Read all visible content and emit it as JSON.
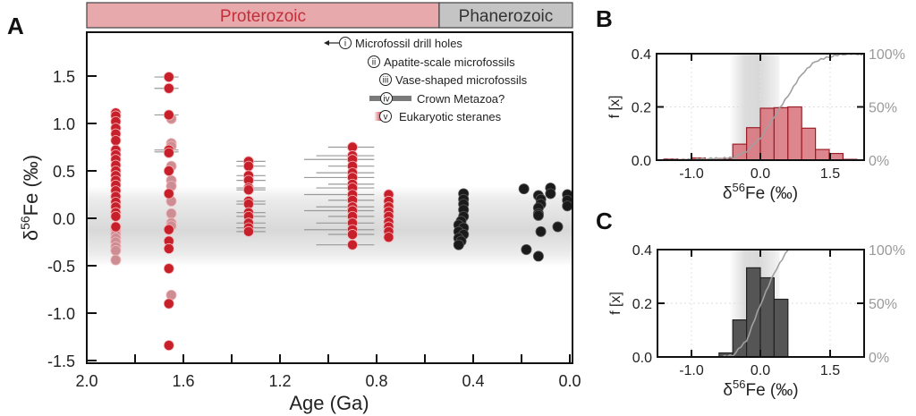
{
  "colors": {
    "proterozoic_fill": "#e8a9ad",
    "proterozoic_text": "#c0303a",
    "phanerozoic_fill": "#c4c4c4",
    "red_point": "#c8202a",
    "faded_point": "#cc8e93",
    "black_point": "#1b1b1b",
    "hist_red": "#d8717a",
    "hist_red_edge": "#9b1f28",
    "hist_dark": "#555555",
    "cdf_line": "#a0a0a0",
    "band": "#d9d9d9"
  },
  "chart_data": [
    {
      "panel": "A",
      "type": "scatter",
      "title": "",
      "xlabel": "Age (Ga)",
      "ylabel": "δ56Fe (‰)",
      "ylabel_main": "δ",
      "ylabel_sup": "56",
      "ylabel_rest": "Fe (‰)",
      "xlim": [
        2.0,
        0.0
      ],
      "ylim": [
        -1.5,
        1.9
      ],
      "x_ticks": [
        2.0,
        1.8,
        1.6,
        1.4,
        1.2,
        1.0,
        0.8,
        0.6,
        0.4,
        0.2,
        0.0
      ],
      "x_tick_labels": [
        "2.0",
        "",
        "1.6",
        "",
        "1.2",
        "",
        "0.8",
        "",
        "0.4",
        "",
        "0.0"
      ],
      "y_ticks": [
        -1.5,
        -1.0,
        -0.5,
        0.0,
        0.5,
        1.0,
        1.5
      ],
      "y_tick_labels": [
        "-1.5",
        "-1.0",
        "-0.5",
        "0.0",
        "0.5",
        "1.0",
        "1.5"
      ],
      "band": [
        -0.45,
        0.28
      ],
      "eras": [
        {
          "name": "Proterozoic",
          "from": 2.0,
          "to": 0.541
        },
        {
          "name": "Phanerozoic",
          "from": 0.541,
          "to": 0.0
        }
      ],
      "legend": [
        {
          "numeral": "i",
          "label": "Microfossil drill holes",
          "marker": "arrow"
        },
        {
          "numeral": "ii",
          "label": "Apatite-scale microfossils",
          "marker": "circle"
        },
        {
          "numeral": "iii",
          "label": "Vase-shaped microfossils",
          "marker": "circle"
        },
        {
          "numeral": "iv",
          "label": "Crown Metazoa?",
          "marker": "bar"
        },
        {
          "numeral": "v",
          "label": "Eukaryotic steranes",
          "marker": "gradient"
        }
      ],
      "series": [
        {
          "name": "Proterozoic red",
          "color": "red",
          "points": [
            [
              1.88,
              1.11
            ],
            [
              1.88,
              1.08
            ],
            [
              1.88,
              1.02
            ],
            [
              1.88,
              0.95
            ],
            [
              1.88,
              0.89
            ],
            [
              1.88,
              0.82
            ],
            [
              1.88,
              0.72
            ],
            [
              1.88,
              0.67
            ],
            [
              1.88,
              0.62
            ],
            [
              1.88,
              0.56
            ],
            [
              1.88,
              0.5
            ],
            [
              1.88,
              0.45
            ],
            [
              1.88,
              0.4
            ],
            [
              1.88,
              0.35
            ],
            [
              1.88,
              0.29
            ],
            [
              1.88,
              0.23
            ],
            [
              1.88,
              0.17
            ],
            [
              1.88,
              0.12
            ],
            [
              1.88,
              0.06
            ],
            [
              1.88,
              0.02
            ],
            [
              1.88,
              -0.09
            ],
            [
              1.66,
              1.49
            ],
            [
              1.66,
              1.37
            ],
            [
              1.66,
              1.09
            ],
            [
              1.66,
              0.72
            ],
            [
              1.66,
              0.69
            ],
            [
              1.66,
              0.5
            ],
            [
              1.66,
              0.26
            ],
            [
              1.66,
              -0.12
            ],
            [
              1.66,
              -0.24
            ],
            [
              1.66,
              -0.32
            ],
            [
              1.66,
              -0.53
            ],
            [
              1.66,
              -0.9
            ],
            [
              1.66,
              -1.34
            ],
            [
              1.33,
              0.6
            ],
            [
              1.33,
              0.55
            ],
            [
              1.33,
              0.45
            ],
            [
              1.33,
              0.4
            ],
            [
              1.33,
              0.32
            ],
            [
              1.33,
              0.3
            ],
            [
              1.33,
              0.18
            ],
            [
              1.33,
              0.15
            ],
            [
              1.33,
              0.06
            ],
            [
              1.33,
              0.02
            ],
            [
              1.33,
              -0.05
            ],
            [
              1.33,
              -0.1
            ],
            [
              1.33,
              -0.14
            ],
            [
              0.9,
              0.75
            ],
            [
              0.9,
              0.66
            ],
            [
              0.9,
              0.62
            ],
            [
              0.9,
              0.55
            ],
            [
              0.9,
              0.48
            ],
            [
              0.9,
              0.43
            ],
            [
              0.9,
              0.36
            ],
            [
              0.9,
              0.32
            ],
            [
              0.9,
              0.25
            ],
            [
              0.9,
              0.19
            ],
            [
              0.9,
              0.12
            ],
            [
              0.9,
              0.08
            ],
            [
              0.9,
              0.02
            ],
            [
              0.9,
              -0.05
            ],
            [
              0.9,
              -0.12
            ],
            [
              0.9,
              -0.17
            ],
            [
              0.9,
              -0.28
            ],
            [
              0.75,
              0.25
            ],
            [
              0.75,
              0.18
            ],
            [
              0.75,
              0.12
            ],
            [
              0.75,
              0.07
            ],
            [
              0.75,
              0.02
            ],
            [
              0.75,
              -0.04
            ],
            [
              0.75,
              -0.09
            ],
            [
              0.75,
              -0.14
            ],
            [
              0.75,
              -0.2
            ]
          ]
        },
        {
          "name": "Proterozoic faded",
          "color": "faded",
          "points": [
            [
              1.88,
              -0.13
            ],
            [
              1.88,
              -0.17
            ],
            [
              1.88,
              -0.21
            ],
            [
              1.88,
              -0.25
            ],
            [
              1.88,
              -0.3
            ],
            [
              1.88,
              -0.34
            ],
            [
              1.88,
              -0.44
            ],
            [
              1.65,
              1.05
            ],
            [
              1.65,
              0.79
            ],
            [
              1.65,
              0.76
            ],
            [
              1.65,
              0.55
            ],
            [
              1.65,
              0.4
            ],
            [
              1.65,
              0.34
            ],
            [
              1.65,
              0.18
            ],
            [
              1.65,
              0.05
            ],
            [
              1.65,
              -0.05
            ],
            [
              1.65,
              -0.08
            ],
            [
              1.65,
              -0.81
            ]
          ]
        },
        {
          "name": "Phanerozoic",
          "color": "black",
          "points": [
            [
              0.44,
              0.26
            ],
            [
              0.44,
              0.2
            ],
            [
              0.44,
              0.15
            ],
            [
              0.44,
              0.09
            ],
            [
              0.44,
              0.02
            ],
            [
              0.45,
              -0.03
            ],
            [
              0.46,
              -0.07
            ],
            [
              0.44,
              -0.1
            ],
            [
              0.46,
              -0.14
            ],
            [
              0.44,
              -0.17
            ],
            [
              0.46,
              -0.21
            ],
            [
              0.45,
              -0.24
            ],
            [
              0.46,
              -0.28
            ],
            [
              0.19,
              0.31
            ],
            [
              0.13,
              0.24
            ],
            [
              0.12,
              0.2
            ],
            [
              0.12,
              0.15
            ],
            [
              0.13,
              0.11
            ],
            [
              0.13,
              0.05
            ],
            [
              0.08,
              0.32
            ],
            [
              0.08,
              0.26
            ],
            [
              0.13,
              0.03
            ],
            [
              0.12,
              -0.14
            ],
            [
              0.05,
              -0.09
            ],
            [
              0.18,
              -0.33
            ],
            [
              0.13,
              -0.4
            ],
            [
              0.01,
              0.25
            ],
            [
              0.01,
              0.19
            ],
            [
              0.01,
              0.13
            ]
          ]
        }
      ],
      "error_bars_note": "horizontal grey age-uncertainty bars on 1.66, 1.33 and 0.90 Ga clusters"
    },
    {
      "panel": "B",
      "type": "bar",
      "title": "",
      "xlabel": "δ56Fe (‰)",
      "ylabel": "f [x]",
      "x_tick_labels": [
        "-1.0",
        "0.0",
        "1.5"
      ],
      "y_tick_labels": [
        "0.0",
        "0.2",
        "0.4"
      ],
      "y2_tick_labels": [
        "0%",
        "50%",
        "100%"
      ],
      "ylim": [
        0,
        0.4
      ],
      "bins": [
        -1.4,
        -1.2,
        -1.0,
        -0.8,
        -0.6,
        -0.4,
        -0.2,
        0.0,
        0.2,
        0.4,
        0.6,
        0.8,
        1.0,
        1.2,
        1.4
      ],
      "values": [
        0.004,
        0.002,
        0.008,
        0.002,
        0.006,
        0.06,
        0.122,
        0.195,
        0.197,
        0.2,
        0.12,
        0.04,
        0.025,
        0.003
      ],
      "band": [
        -0.45,
        0.28
      ],
      "cdf": true
    },
    {
      "panel": "C",
      "type": "bar",
      "title": "",
      "xlabel": "δ56Fe (‰)",
      "ylabel": "f [x]",
      "x_tick_labels": [
        "-1.0",
        "0.0",
        "1.5"
      ],
      "y_tick_labels": [
        "0.0",
        "0.2",
        "0.4"
      ],
      "y2_tick_labels": [
        "0%",
        "50%",
        "100%"
      ],
      "ylim": [
        0,
        0.4
      ],
      "bins": [
        -0.6,
        -0.4,
        -0.2,
        0.0,
        0.2,
        0.4
      ],
      "values": [
        0.015,
        0.138,
        0.332,
        0.295,
        0.215
      ],
      "band": [
        -0.45,
        0.28
      ],
      "cdf": true
    }
  ],
  "panel_letters": {
    "a": "A",
    "b": "B",
    "c": "C"
  }
}
